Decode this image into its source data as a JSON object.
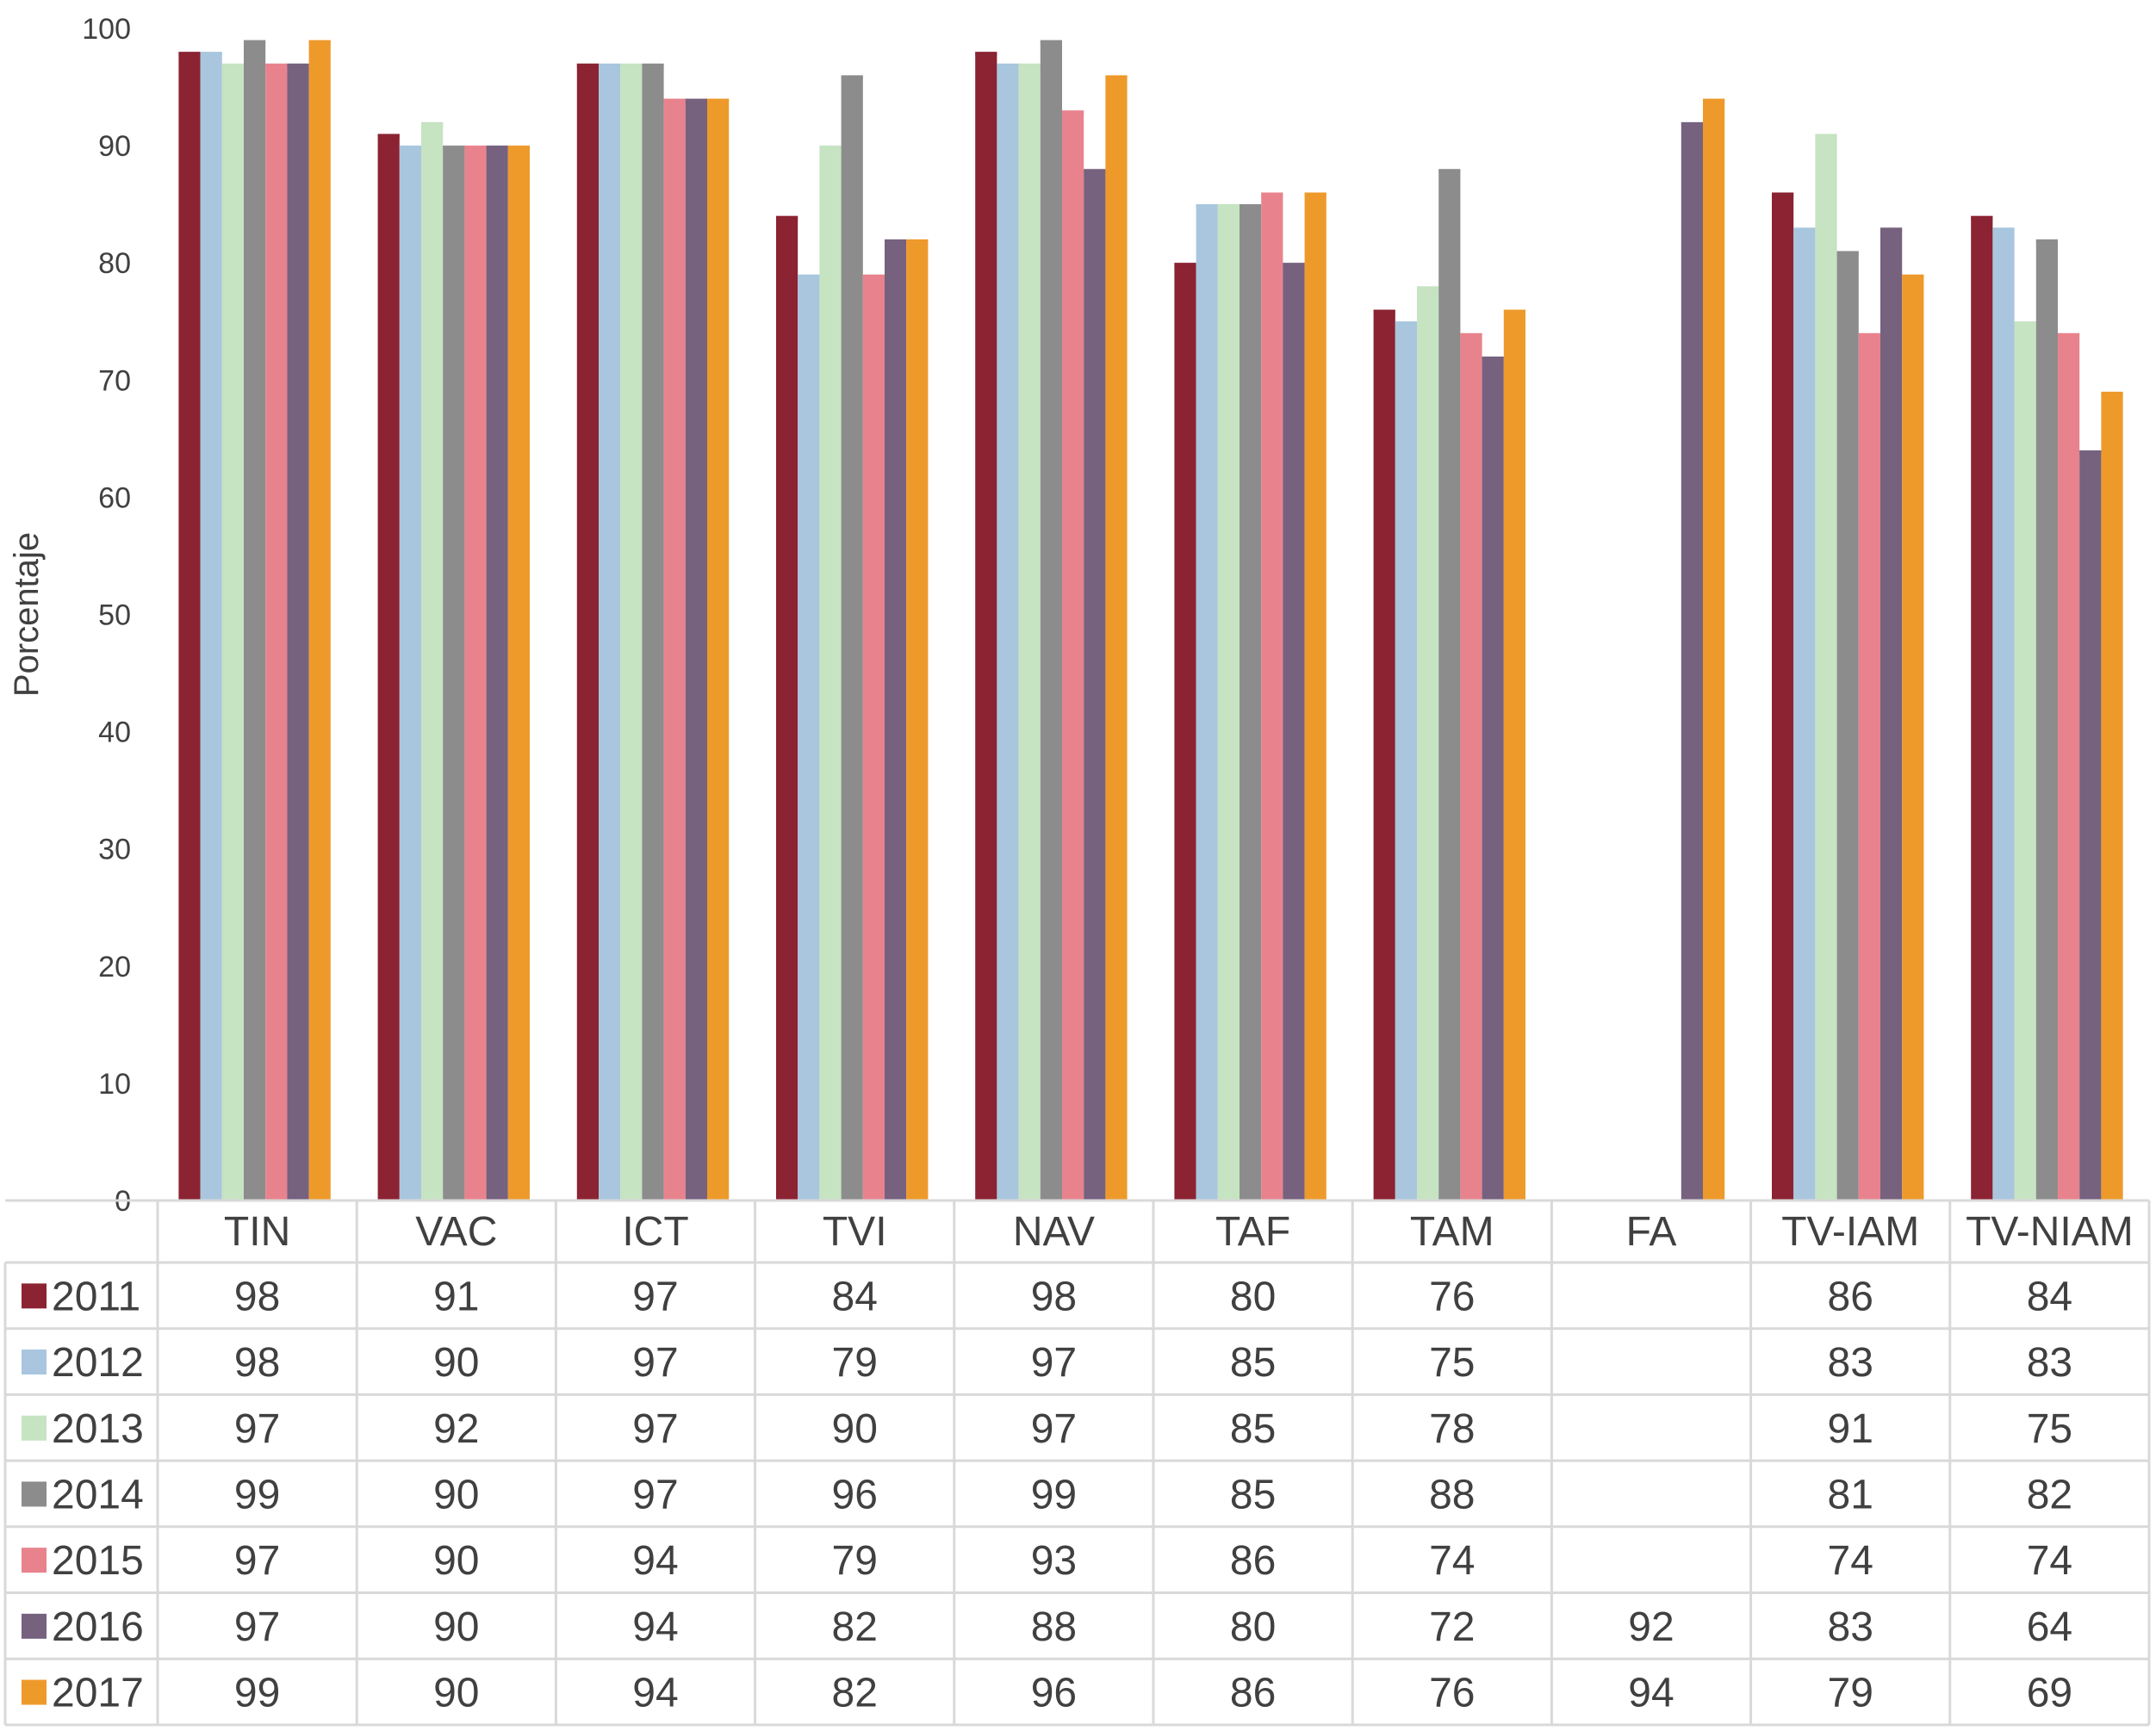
{
  "chart_data": {
    "type": "bar",
    "title": "",
    "ylabel": "Porcentaje",
    "xlabel": "",
    "ylim": [
      0,
      100
    ],
    "y_ticks": [
      "0",
      "10",
      "20",
      "30",
      "40",
      "50",
      "60",
      "70",
      "80",
      "90",
      "100"
    ],
    "grid": false,
    "legend": "data-table-left",
    "categories": [
      "TIN",
      "VAC",
      "ICT",
      "TVI",
      "NAV",
      "TAF",
      "TAM",
      "FA",
      "TV-IAM",
      "TV-NIAM"
    ],
    "series": [
      {
        "name": "2011",
        "color": "#8B2332",
        "values": [
          98,
          91,
          97,
          84,
          98,
          80,
          76,
          null,
          86,
          84
        ],
        "labels": [
          "98",
          "91",
          "97",
          "84",
          "98",
          "80",
          "76",
          "",
          "86",
          "84"
        ]
      },
      {
        "name": "2012",
        "color": "#A9C6DE",
        "values": [
          98,
          90,
          97,
          79,
          97,
          85,
          75,
          null,
          83,
          83
        ],
        "labels": [
          "98",
          "90",
          "97",
          "79",
          "97",
          "85",
          "75",
          "",
          "83",
          "83"
        ]
      },
      {
        "name": "2013",
        "color": "#C6E3C2",
        "values": [
          97,
          92,
          97,
          90,
          97,
          85,
          78,
          null,
          91,
          75
        ],
        "labels": [
          "97",
          "92",
          "97",
          "90",
          "97",
          "85",
          "78",
          "",
          "91",
          "75"
        ]
      },
      {
        "name": "2014",
        "color": "#8C8C8C",
        "values": [
          99,
          90,
          97,
          96,
          99,
          85,
          88,
          null,
          81,
          82
        ],
        "labels": [
          "99",
          "90",
          "97",
          "96",
          "99",
          "85",
          "88",
          "",
          "81",
          "82"
        ]
      },
      {
        "name": "2015",
        "color": "#E8838D",
        "values": [
          97,
          90,
          94,
          79,
          93,
          86,
          74,
          null,
          74,
          74
        ],
        "labels": [
          "97",
          "90",
          "94",
          "79",
          "93",
          "86",
          "74",
          "",
          "74",
          "74"
        ]
      },
      {
        "name": "2016",
        "color": "#76617F",
        "values": [
          97,
          90,
          94,
          82,
          88,
          80,
          72,
          92,
          83,
          64
        ],
        "labels": [
          "97",
          "90",
          "94",
          "82",
          "88",
          "80",
          "72",
          "92",
          "83",
          "64"
        ]
      },
      {
        "name": "2017",
        "color": "#EE9A2B",
        "values": [
          99,
          90,
          94,
          82,
          96,
          86,
          76,
          94,
          79,
          69
        ],
        "labels": [
          "99",
          "90",
          "94",
          "82",
          "96",
          "86",
          "76",
          "94",
          "79",
          "69"
        ]
      }
    ]
  }
}
